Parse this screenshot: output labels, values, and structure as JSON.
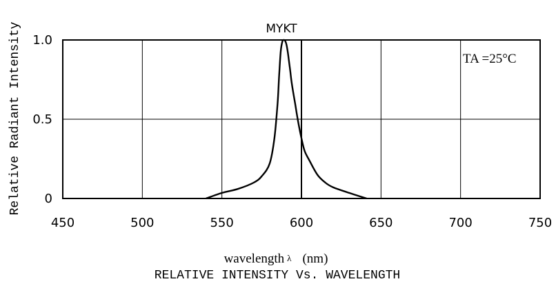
{
  "chart_data": {
    "type": "line",
    "title": "MYKT",
    "caption": "RELATIVE INTENSITY Vs. WAVELENGTH",
    "xlabel": "wavelength",
    "xlabel_symbol": "λ",
    "xlabel_unit": "(nm)",
    "ylabel": "Relative Radiant Intensity",
    "annotation": "TA =25°C",
    "xlim": [
      450,
      750
    ],
    "ylim": [
      0,
      1.0
    ],
    "x_ticks": [
      "450",
      "500",
      "550",
      "600",
      "650",
      "700",
      "750"
    ],
    "y_ticks": [
      "0",
      "0.5",
      "1.0"
    ],
    "grid": true,
    "series": [
      {
        "x": [
          540,
          550,
          560,
          570,
          575,
          580,
          583,
          585,
          586,
          587,
          588,
          589,
          590,
          591,
          592,
          593,
          594,
          596,
          598,
          600,
          602,
          605,
          610,
          615,
          620,
          630,
          641
        ],
        "y": [
          0.0,
          0.035,
          0.06,
          0.1,
          0.14,
          0.22,
          0.38,
          0.6,
          0.78,
          0.93,
          0.99,
          1.0,
          0.99,
          0.95,
          0.88,
          0.8,
          0.72,
          0.6,
          0.48,
          0.38,
          0.3,
          0.24,
          0.15,
          0.1,
          0.07,
          0.035,
          0.0
        ]
      }
    ]
  }
}
